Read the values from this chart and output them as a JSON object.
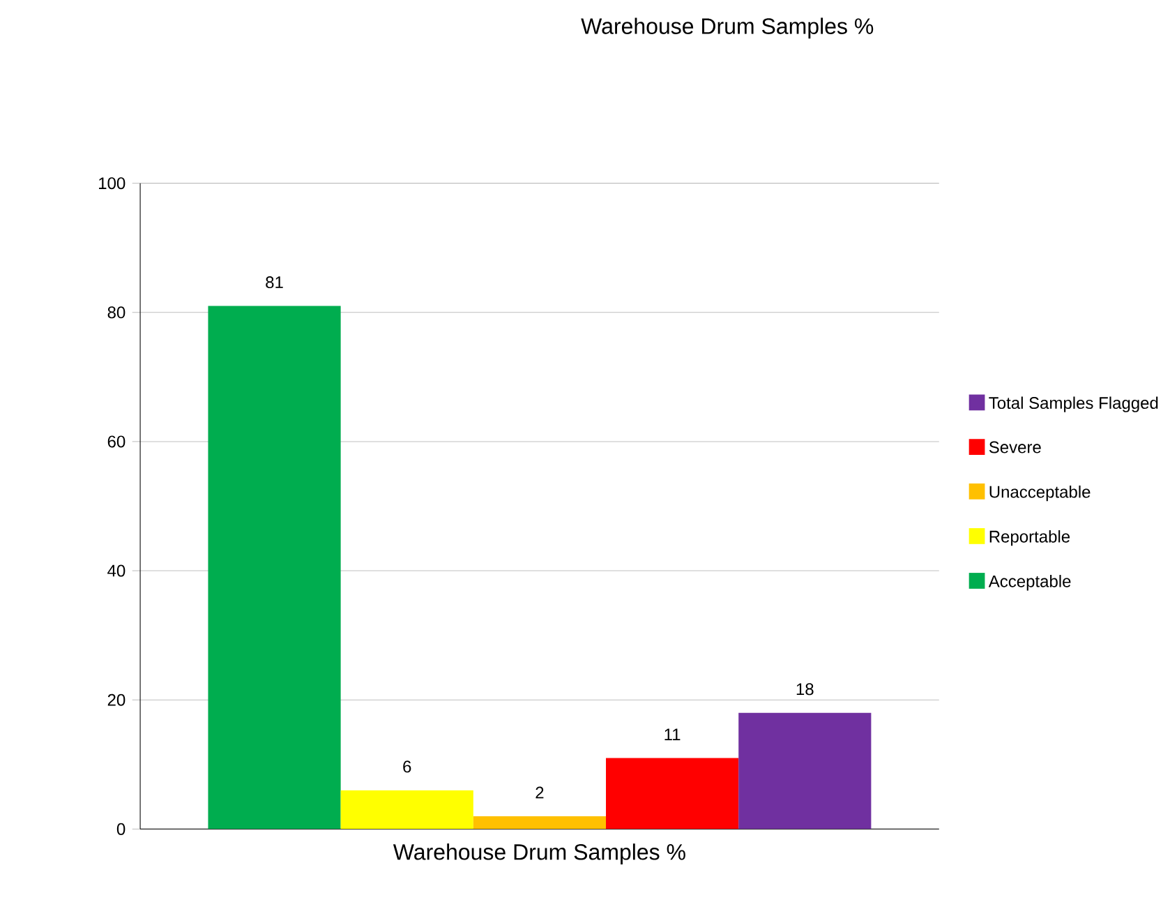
{
  "chart_data": {
    "type": "bar",
    "title": "Warehouse Drum Samples %",
    "categories": [
      "Warehouse Drum Samples %"
    ],
    "series": [
      {
        "name": "Acceptable",
        "color": "#00ad4f",
        "values": [
          81
        ]
      },
      {
        "name": "Reportable",
        "color": "#ffff00",
        "values": [
          6
        ]
      },
      {
        "name": "Unacceptable",
        "color": "#ffc000",
        "values": [
          2
        ]
      },
      {
        "name": "Severe",
        "color": "#ff0000",
        "values": [
          11
        ]
      },
      {
        "name": "Total Samples Flagged",
        "color": "#7030a0",
        "values": [
          18
        ]
      }
    ],
    "ylim": [
      0,
      100
    ],
    "yticks": [
      0,
      20,
      40,
      60,
      80,
      100
    ],
    "grid": "y",
    "legend": "right",
    "data_labels": true
  }
}
